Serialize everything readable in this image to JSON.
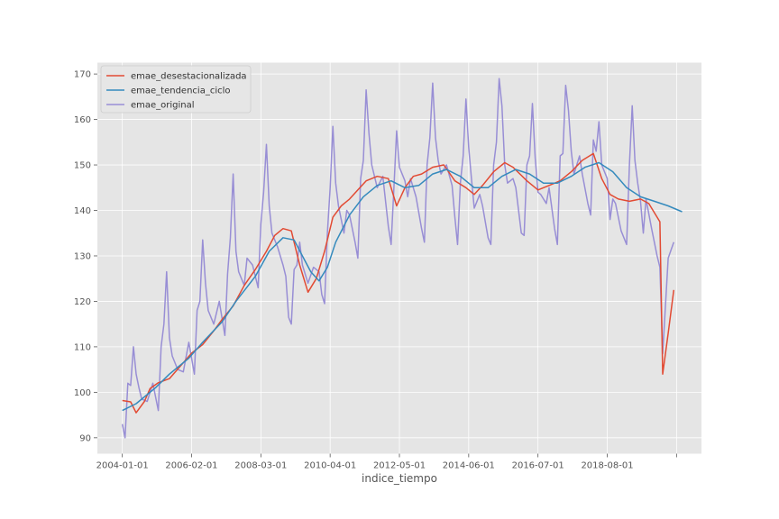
{
  "chart_data": {
    "type": "line",
    "title": "",
    "xlabel": "indice_tiempo",
    "ylabel": "",
    "x_tick_labels": [
      "2004-01-01",
      "2006-02-01",
      "2008-03-01",
      "2010-04-01",
      "2012-05-01",
      "2014-06-01",
      "2016-07-01",
      "2018-08-01",
      ""
    ],
    "x_ticks": [
      "2004-01-01",
      "2006-02-01",
      "2008-03-01",
      "2010-04-01",
      "2012-05-01",
      "2014-06-01",
      "2016-07-01",
      "2018-08-01",
      "2020-09-01"
    ],
    "xlim": [
      "2003-04-01",
      "2021-06-01"
    ],
    "ylim": [
      86.5,
      172.5
    ],
    "y_ticks": [
      90,
      100,
      110,
      120,
      130,
      140,
      150,
      160,
      170
    ],
    "grid": true,
    "legend_position": "top-left",
    "colors": {
      "emae_desestacionalizada": "#E24A33",
      "emae_tendencia_ciclo": "#348ABD",
      "emae_original": "#988ED5",
      "plot_background": "#E5E5E5",
      "grid": "#FFFFFF"
    },
    "series": [
      {
        "name": "emae_desestacionalizada",
        "values": [
          [
            "2004-01-01",
            98.2
          ],
          [
            "2004-04-01",
            97.9
          ],
          [
            "2004-06-01",
            95.5
          ],
          [
            "2004-09-01",
            98.0
          ],
          [
            "2004-11-01",
            100.8
          ],
          [
            "2005-02-01",
            102.1
          ],
          [
            "2005-06-01",
            103.0
          ],
          [
            "2005-10-01",
            105.8
          ],
          [
            "2006-02-01",
            108.6
          ],
          [
            "2006-06-01",
            110.5
          ],
          [
            "2006-10-01",
            113.5
          ],
          [
            "2007-01-01",
            116.0
          ],
          [
            "2007-05-01",
            119.0
          ],
          [
            "2007-09-01",
            123.5
          ],
          [
            "2008-01-01",
            127.0
          ],
          [
            "2008-05-01",
            131.0
          ],
          [
            "2008-08-01",
            134.5
          ],
          [
            "2008-11-01",
            136.0
          ],
          [
            "2009-02-01",
            135.5
          ],
          [
            "2009-05-01",
            128.0
          ],
          [
            "2009-08-01",
            122.0
          ],
          [
            "2009-11-01",
            125.0
          ],
          [
            "2010-02-01",
            131.0
          ],
          [
            "2010-05-01",
            138.5
          ],
          [
            "2010-08-01",
            141.0
          ],
          [
            "2010-11-01",
            142.5
          ],
          [
            "2011-02-01",
            144.5
          ],
          [
            "2011-05-01",
            146.5
          ],
          [
            "2011-09-01",
            147.5
          ],
          [
            "2012-01-01",
            147.0
          ],
          [
            "2012-04-01",
            141.0
          ],
          [
            "2012-07-01",
            145.0
          ],
          [
            "2012-10-01",
            147.5
          ],
          [
            "2013-01-01",
            148.0
          ],
          [
            "2013-05-01",
            149.5
          ],
          [
            "2013-09-01",
            150.0
          ],
          [
            "2014-01-01",
            146.5
          ],
          [
            "2014-05-01",
            145.0
          ],
          [
            "2014-08-01",
            143.5
          ],
          [
            "2014-11-01",
            145.5
          ],
          [
            "2015-03-01",
            148.5
          ],
          [
            "2015-07-01",
            150.5
          ],
          [
            "2015-10-01",
            149.5
          ],
          [
            "2016-03-01",
            146.5
          ],
          [
            "2016-07-01",
            144.5
          ],
          [
            "2016-11-01",
            145.5
          ],
          [
            "2017-03-01",
            146.5
          ],
          [
            "2017-07-01",
            148.5
          ],
          [
            "2017-11-01",
            151.0
          ],
          [
            "2018-03-01",
            152.5
          ],
          [
            "2018-06-01",
            147.0
          ],
          [
            "2018-09-01",
            143.5
          ],
          [
            "2018-12-01",
            142.5
          ],
          [
            "2019-04-01",
            142.0
          ],
          [
            "2019-08-01",
            142.5
          ],
          [
            "2019-11-01",
            141.5
          ],
          [
            "2020-03-01",
            137.5
          ],
          [
            "2020-04-01",
            104.0
          ],
          [
            "2020-06-01",
            113.0
          ],
          [
            "2020-08-01",
            122.5
          ]
        ]
      },
      {
        "name": "emae_tendencia_ciclo",
        "values": [
          [
            "2004-01-01",
            96.0
          ],
          [
            "2004-06-01",
            97.5
          ],
          [
            "2005-01-01",
            101.0
          ],
          [
            "2005-06-01",
            104.0
          ],
          [
            "2006-01-01",
            107.5
          ],
          [
            "2006-06-01",
            111.0
          ],
          [
            "2007-01-01",
            115.5
          ],
          [
            "2007-06-01",
            120.0
          ],
          [
            "2008-01-01",
            125.5
          ],
          [
            "2008-06-01",
            131.0
          ],
          [
            "2008-11-01",
            134.0
          ],
          [
            "2009-03-01",
            133.5
          ],
          [
            "2009-06-01",
            130.0
          ],
          [
            "2009-09-01",
            126.5
          ],
          [
            "2009-12-01",
            124.5
          ],
          [
            "2010-03-01",
            127.5
          ],
          [
            "2010-06-01",
            133.0
          ],
          [
            "2010-11-01",
            139.0
          ],
          [
            "2011-04-01",
            143.0
          ],
          [
            "2011-09-01",
            145.5
          ],
          [
            "2012-02-01",
            146.5
          ],
          [
            "2012-07-01",
            145.0
          ],
          [
            "2012-12-01",
            145.5
          ],
          [
            "2013-05-01",
            148.0
          ],
          [
            "2013-10-01",
            149.0
          ],
          [
            "2014-03-01",
            147.5
          ],
          [
            "2014-08-01",
            145.0
          ],
          [
            "2015-01-01",
            145.0
          ],
          [
            "2015-06-01",
            147.5
          ],
          [
            "2015-11-01",
            149.0
          ],
          [
            "2016-04-01",
            148.0
          ],
          [
            "2016-09-01",
            146.0
          ],
          [
            "2017-02-01",
            146.0
          ],
          [
            "2017-07-01",
            147.5
          ],
          [
            "2017-12-01",
            149.5
          ],
          [
            "2018-05-01",
            150.5
          ],
          [
            "2018-10-01",
            148.5
          ],
          [
            "2019-03-01",
            145.0
          ],
          [
            "2019-08-01",
            143.0
          ],
          [
            "2020-01-01",
            142.0
          ],
          [
            "2020-06-01",
            141.0
          ],
          [
            "2020-11-01",
            139.7
          ]
        ]
      },
      {
        "name": "emae_original",
        "values": [
          [
            "2004-01-01",
            93.0
          ],
          [
            "2004-02-01",
            90.0
          ],
          [
            "2004-03-01",
            102.0
          ],
          [
            "2004-04-01",
            101.5
          ],
          [
            "2004-05-01",
            110.0
          ],
          [
            "2004-06-01",
            104.0
          ],
          [
            "2004-07-01",
            101.0
          ],
          [
            "2004-08-01",
            98.5
          ],
          [
            "2004-10-01",
            98.0
          ],
          [
            "2004-12-01",
            102.0
          ],
          [
            "2005-02-01",
            96.0
          ],
          [
            "2005-03-01",
            110.0
          ],
          [
            "2005-04-01",
            115.0
          ],
          [
            "2005-05-01",
            126.5
          ],
          [
            "2005-06-01",
            112.0
          ],
          [
            "2005-07-01",
            108.0
          ],
          [
            "2005-09-01",
            105.0
          ],
          [
            "2005-11-01",
            104.5
          ],
          [
            "2006-01-01",
            111.0
          ],
          [
            "2006-03-01",
            104.0
          ],
          [
            "2006-04-01",
            118.0
          ],
          [
            "2006-05-01",
            120.0
          ],
          [
            "2006-06-01",
            133.5
          ],
          [
            "2006-07-01",
            124.0
          ],
          [
            "2006-08-01",
            118.0
          ],
          [
            "2006-10-01",
            115.0
          ],
          [
            "2006-12-01",
            120.0
          ],
          [
            "2007-02-01",
            112.5
          ],
          [
            "2007-03-01",
            126.0
          ],
          [
            "2007-04-01",
            134.0
          ],
          [
            "2007-05-01",
            148.0
          ],
          [
            "2007-06-01",
            131.0
          ],
          [
            "2007-07-01",
            126.5
          ],
          [
            "2007-09-01",
            123.5
          ],
          [
            "2007-10-01",
            129.5
          ],
          [
            "2007-12-01",
            128.0
          ],
          [
            "2008-02-01",
            123.0
          ],
          [
            "2008-03-01",
            137.0
          ],
          [
            "2008-04-01",
            144.0
          ],
          [
            "2008-05-01",
            154.5
          ],
          [
            "2008-06-01",
            141.0
          ],
          [
            "2008-07-01",
            135.0
          ],
          [
            "2008-09-01",
            132.0
          ],
          [
            "2008-11-01",
            128.0
          ],
          [
            "2008-12-01",
            125.5
          ],
          [
            "2009-01-01",
            116.5
          ],
          [
            "2009-02-01",
            115.0
          ],
          [
            "2009-03-01",
            127.0
          ],
          [
            "2009-04-01",
            128.0
          ],
          [
            "2009-05-01",
            133.0
          ],
          [
            "2009-06-01",
            128.0
          ],
          [
            "2009-08-01",
            124.0
          ],
          [
            "2009-10-01",
            127.5
          ],
          [
            "2009-12-01",
            126.5
          ],
          [
            "2010-01-01",
            121.5
          ],
          [
            "2010-02-01",
            119.5
          ],
          [
            "2010-03-01",
            135.0
          ],
          [
            "2010-04-01",
            145.0
          ],
          [
            "2010-05-01",
            158.5
          ],
          [
            "2010-06-01",
            146.0
          ],
          [
            "2010-07-01",
            141.0
          ],
          [
            "2010-09-01",
            135.0
          ],
          [
            "2010-10-01",
            140.0
          ],
          [
            "2010-11-01",
            139.0
          ],
          [
            "2011-01-01",
            133.0
          ],
          [
            "2011-02-01",
            129.5
          ],
          [
            "2011-03-01",
            147.0
          ],
          [
            "2011-04-01",
            151.0
          ],
          [
            "2011-05-01",
            166.5
          ],
          [
            "2011-06-01",
            157.0
          ],
          [
            "2011-07-01",
            150.0
          ],
          [
            "2011-09-01",
            145.0
          ],
          [
            "2011-11-01",
            147.5
          ],
          [
            "2012-01-01",
            136.5
          ],
          [
            "2012-02-01",
            132.5
          ],
          [
            "2012-03-01",
            145.0
          ],
          [
            "2012-04-01",
            157.5
          ],
          [
            "2012-05-01",
            149.5
          ],
          [
            "2012-07-01",
            146.5
          ],
          [
            "2012-08-01",
            143.0
          ],
          [
            "2012-09-01",
            147.0
          ],
          [
            "2012-11-01",
            143.0
          ],
          [
            "2013-01-01",
            136.0
          ],
          [
            "2013-02-01",
            133.0
          ],
          [
            "2013-03-01",
            150.0
          ],
          [
            "2013-04-01",
            156.0
          ],
          [
            "2013-05-01",
            168.0
          ],
          [
            "2013-06-01",
            156.0
          ],
          [
            "2013-07-01",
            151.0
          ],
          [
            "2013-08-01",
            148.0
          ],
          [
            "2013-10-01",
            150.0
          ],
          [
            "2013-12-01",
            145.5
          ],
          [
            "2014-01-01",
            138.5
          ],
          [
            "2014-02-01",
            132.5
          ],
          [
            "2014-03-01",
            146.0
          ],
          [
            "2014-04-01",
            152.0
          ],
          [
            "2014-05-01",
            164.5
          ],
          [
            "2014-06-01",
            154.0
          ],
          [
            "2014-07-01",
            147.0
          ],
          [
            "2014-08-01",
            140.5
          ],
          [
            "2014-10-01",
            143.5
          ],
          [
            "2014-11-01",
            141.0
          ],
          [
            "2015-01-01",
            134.0
          ],
          [
            "2015-02-01",
            132.5
          ],
          [
            "2015-03-01",
            150.0
          ],
          [
            "2015-04-01",
            155.0
          ],
          [
            "2015-05-01",
            169.0
          ],
          [
            "2015-06-01",
            163.0
          ],
          [
            "2015-07-01",
            150.0
          ],
          [
            "2015-08-01",
            146.0
          ],
          [
            "2015-10-01",
            147.0
          ],
          [
            "2015-11-01",
            145.0
          ],
          [
            "2016-01-01",
            135.0
          ],
          [
            "2016-02-01",
            134.5
          ],
          [
            "2016-03-01",
            150.0
          ],
          [
            "2016-04-01",
            152.0
          ],
          [
            "2016-05-01",
            163.5
          ],
          [
            "2016-06-01",
            151.5
          ],
          [
            "2016-07-01",
            144.0
          ],
          [
            "2016-08-01",
            143.5
          ],
          [
            "2016-10-01",
            141.5
          ],
          [
            "2016-11-01",
            145.0
          ],
          [
            "2017-01-01",
            136.0
          ],
          [
            "2017-02-01",
            132.5
          ],
          [
            "2017-03-01",
            152.0
          ],
          [
            "2017-04-01",
            152.5
          ],
          [
            "2017-05-01",
            167.5
          ],
          [
            "2017-06-01",
            162.0
          ],
          [
            "2017-07-01",
            153.0
          ],
          [
            "2017-08-01",
            148.0
          ],
          [
            "2017-10-01",
            152.0
          ],
          [
            "2017-11-01",
            148.0
          ],
          [
            "2018-01-01",
            141.5
          ],
          [
            "2018-02-01",
            139.0
          ],
          [
            "2018-03-01",
            155.5
          ],
          [
            "2018-04-01",
            153.0
          ],
          [
            "2018-05-01",
            159.5
          ],
          [
            "2018-06-01",
            150.0
          ],
          [
            "2018-08-01",
            147.0
          ],
          [
            "2018-09-01",
            138.0
          ],
          [
            "2018-10-01",
            142.5
          ],
          [
            "2018-11-01",
            141.5
          ],
          [
            "2019-01-01",
            135.5
          ],
          [
            "2019-03-01",
            132.5
          ],
          [
            "2019-04-01",
            150.0
          ],
          [
            "2019-05-01",
            163.0
          ],
          [
            "2019-06-01",
            151.0
          ],
          [
            "2019-07-01",
            146.0
          ],
          [
            "2019-08-01",
            142.0
          ],
          [
            "2019-09-01",
            135.0
          ],
          [
            "2019-10-01",
            142.5
          ],
          [
            "2019-12-01",
            136.0
          ],
          [
            "2020-02-01",
            130.0
          ],
          [
            "2020-03-01",
            127.5
          ],
          [
            "2020-04-01",
            108.5
          ],
          [
            "2020-06-01",
            129.5
          ],
          [
            "2020-08-01",
            133.0
          ]
        ]
      }
    ]
  }
}
